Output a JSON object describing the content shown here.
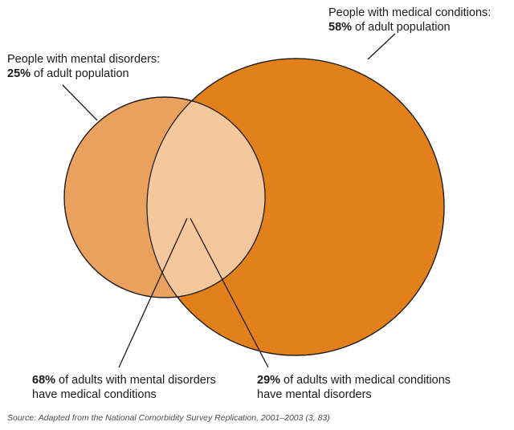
{
  "sets": {
    "medical": {
      "line1": "People with medical conditions:",
      "pct": "58%",
      "line2_rest": " of adult population",
      "value": 58,
      "color": "#E2801B"
    },
    "mental": {
      "line1": "People with mental disorders:",
      "pct": "25%",
      "line2_rest": " of adult population",
      "value": 25,
      "color": "#EBA15E"
    },
    "overlap_color": "#F5C79D"
  },
  "callouts": {
    "mental_with_medical": {
      "pct": "68%",
      "line1_rest": " of adults with mental disorders",
      "line2": "have medical conditions",
      "value": 68
    },
    "medical_with_mental": {
      "pct": "29%",
      "line1_rest": " of adults with medical conditions",
      "line2": "have mental disorders",
      "value": 29
    }
  },
  "source": "Source: Adapted from the National Comorbidity Survey Replication, 2001–2003 (3, 83)"
}
